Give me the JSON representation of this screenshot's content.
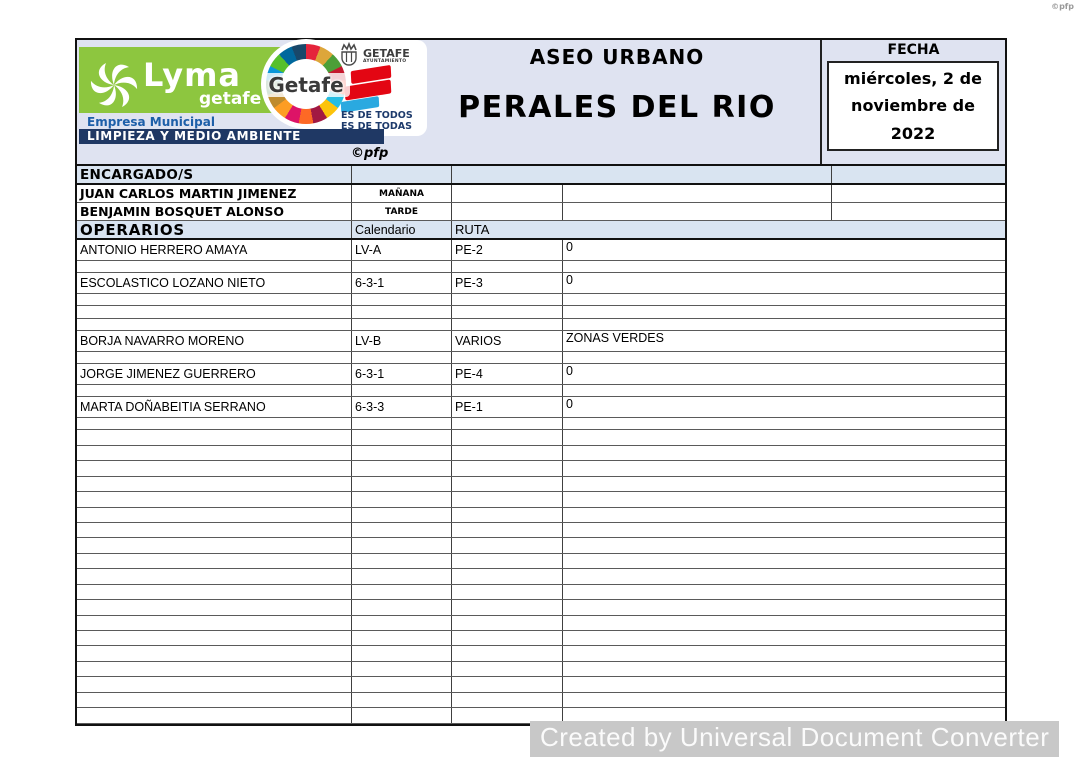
{
  "meta": {
    "corner_mark": "©pfp",
    "watermark": "Created by Universal Document Converter"
  },
  "header": {
    "service_title": "ASEO URBANO",
    "zone_title": "PERALES DEL RIO",
    "fecha_label": "FECHA",
    "fecha_value": "miércoles, 2 de noviembre de 2022",
    "stamp": "©pfp",
    "logo": {
      "lyma": "Lyma",
      "lyma_sub": "getafe",
      "empresa": "Empresa Municipal",
      "department_bar": "LIMPIEZA Y MEDIO AMBIENTE",
      "getafe": "Getafe",
      "ayuntamiento_line1": "GETAFE",
      "ayuntamiento_line2": "AYUNTAMIENTO",
      "slogan_line1": "ES DE TODOS",
      "slogan_line2": "ES DE TODAS"
    }
  },
  "encargados": {
    "header": "ENCARGADO/S",
    "rows": [
      {
        "name": "JUAN CARLOS MARTIN JIMENEZ",
        "turno": "MAÑANA"
      },
      {
        "name": "BENJAMIN BOSQUET ALONSO",
        "turno": "TARDE"
      }
    ]
  },
  "operarios": {
    "header": "OPERARIOS",
    "col_calendario": "Calendario",
    "col_ruta": "RUTA",
    "rows": [
      {
        "name": "ANTONIO HERRERO AMAYA",
        "calendario": "LV-A",
        "ruta": "PE-2",
        "obs": "0",
        "size": "tall"
      },
      {
        "size": "thin"
      },
      {
        "name": "ESCOLASTICO LOZANO NIETO",
        "calendario": "6-3-1",
        "ruta": "PE-3",
        "obs": "0",
        "size": "tall"
      },
      {
        "size": "thin"
      },
      {
        "size": "thin"
      },
      {
        "size": "thin"
      },
      {
        "name": "BORJA NAVARRO MORENO",
        "calendario": "LV-B",
        "ruta": "VARIOS",
        "obs": "ZONAS VERDES",
        "size": "tall"
      },
      {
        "size": "thin"
      },
      {
        "name": "JORGE JIMENEZ GUERRERO",
        "calendario": "6-3-1",
        "ruta": "PE-4",
        "obs": "0",
        "size": "tall"
      },
      {
        "size": "thin"
      },
      {
        "name": "MARTA DOÑABEITIA SERRANO",
        "calendario": "6-3-3",
        "ruta": "PE-1",
        "obs": "0",
        "size": "tall"
      },
      {
        "size": "thin"
      }
    ],
    "trailing_blank_rows": 19
  },
  "colors": {
    "header_fill": "#dfe3f1",
    "panel_fill": "#d9e4f1",
    "navy": "#1f3864",
    "lyma_green": "#8dc63f",
    "empresa_blue": "#1d5fa9",
    "flag_red": "#e30613",
    "flag_cyan": "#2aa9e0",
    "watermark_bg": "#c8c8c8",
    "sdg_ring": [
      "#E5243B",
      "#DDA63A",
      "#4C9F38",
      "#C5192D",
      "#FF3A21",
      "#26BDE2",
      "#FCC30B",
      "#A21942",
      "#FD6925",
      "#DD1367",
      "#FD9D24",
      "#BF8B2E",
      "#3F7E44",
      "#0A97D9",
      "#56C02B",
      "#00689D",
      "#19486A"
    ]
  }
}
